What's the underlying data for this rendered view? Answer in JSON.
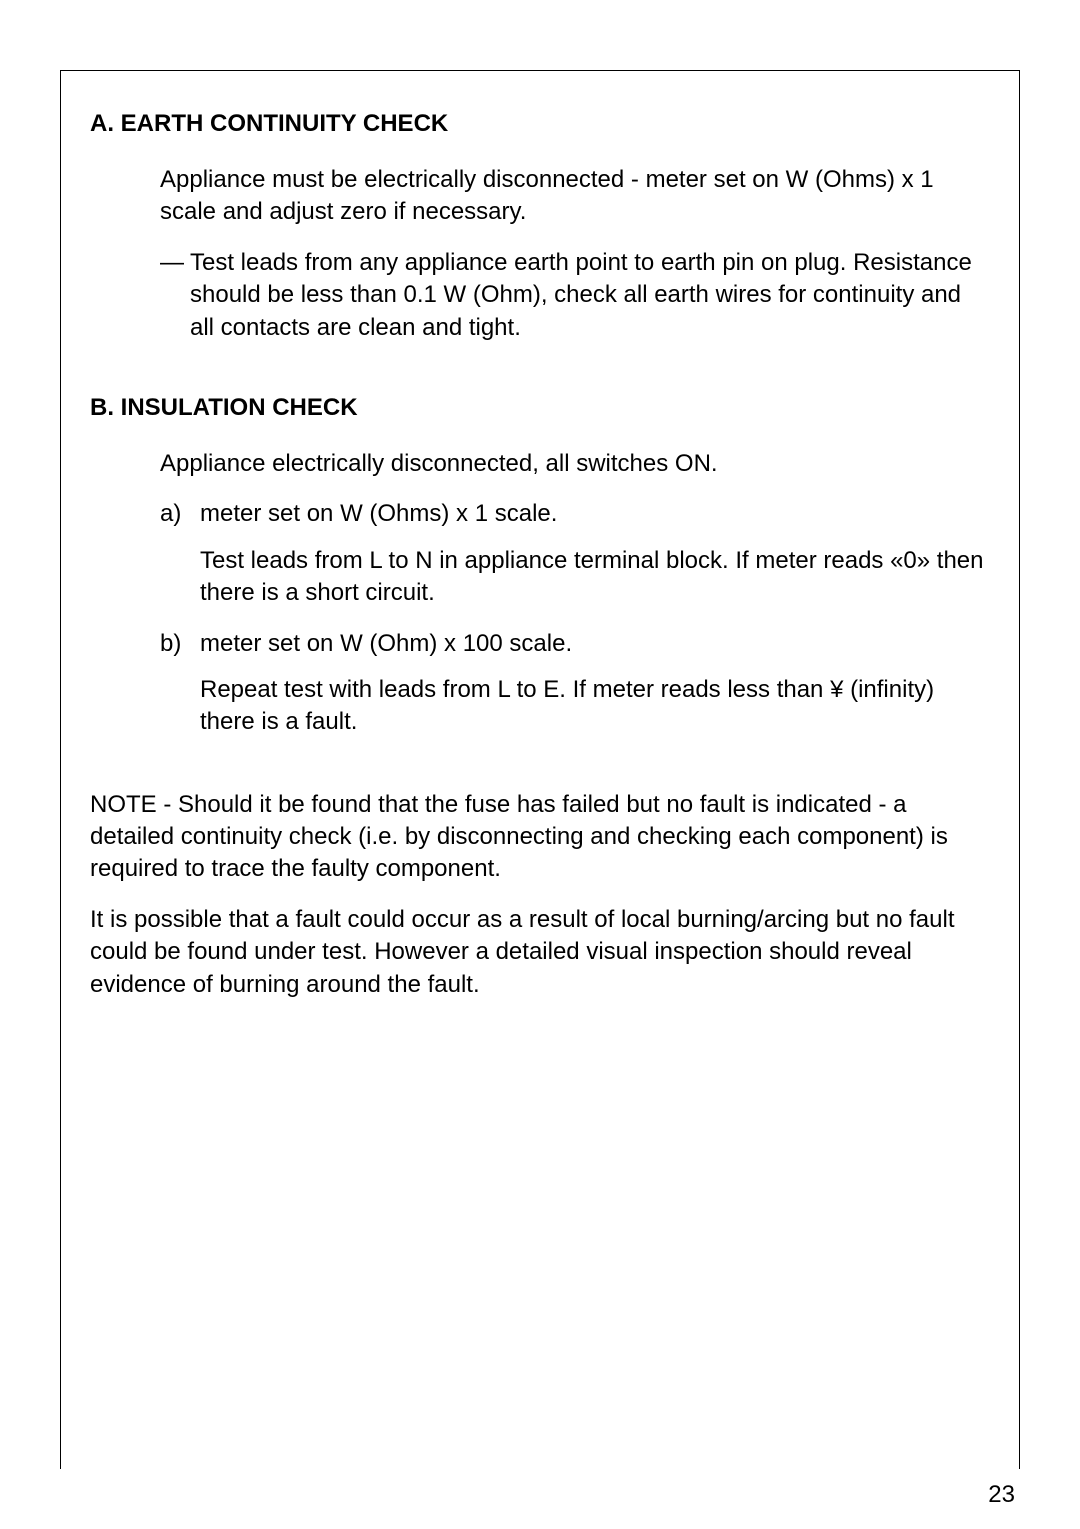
{
  "page": {
    "background_color": "#ffffff",
    "text_color": "#000000",
    "body_fontsize_pt": 18,
    "heading_fontsize_pt": 18,
    "font_family": "Arial, Helvetica, sans-serif",
    "page_number": "23"
  },
  "symbols": {
    "ohm": "W",
    "infinity": "¥"
  },
  "sectionA": {
    "heading": "A. EARTH CONTINUITY CHECK",
    "para1": "Appliance must be electrically disconnected - meter set on W (Ohms) x 1 scale and adjust zero if necessary.",
    "dash_marker": "—",
    "dash_text": "Test leads from any appliance earth point to earth pin on plug. Resistance should be less than 0.1 W (Ohm), check all earth wires for continuity and all contacts are clean and tight."
  },
  "sectionB": {
    "heading": "B. INSULATION CHECK",
    "para1": "Appliance electrically disconnected, all switches ON.",
    "item_a_marker": "a)",
    "item_a_text": "meter set on W (Ohms) x 1 scale.",
    "item_a_sub": "Test leads from L to N in appliance terminal block. If meter reads «0» then there is a short circuit.",
    "item_b_marker": "b)",
    "item_b_text": "meter set on W (Ohm) x 100 scale.",
    "item_b_sub": "Repeat test with leads from L to E. If meter reads less than ¥ (infinity) there is a fault."
  },
  "notes": {
    "para1": "NOTE - Should it be found that the fuse has failed but no fault is indicated - a detailed continuity check (i.e. by disconnecting and checking each component) is required to trace the faulty component.",
    "para2": "It is possible that a fault could occur as a result of local burning/arcing but no fault could be found under test. However a detailed visual inspection should reveal evidence of burning around the fault."
  }
}
